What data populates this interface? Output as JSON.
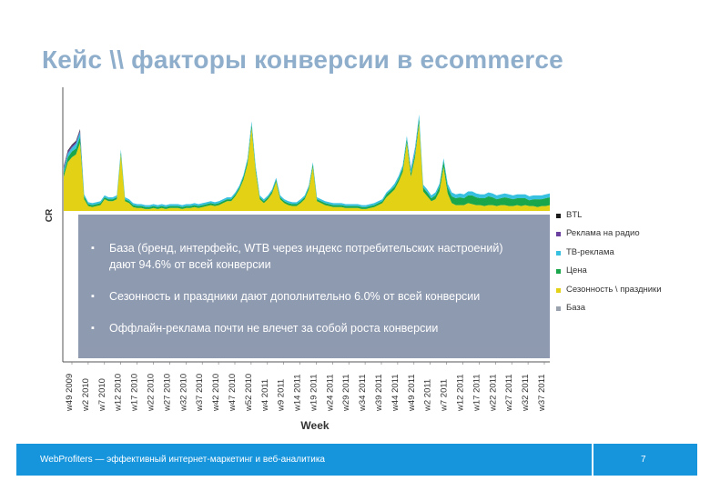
{
  "slide": {
    "title": "Кейс \\\\ факторы конверсии в ecommerce",
    "bullets": [
      "База (бренд, интерфейс, WTB через индекс потребительских настроений) дают 94.6% от всей конверсии",
      "Сезонность и праздники дают дополнительно 6.0% от всей конверсии",
      "Оффлайн-реклама почти не влечет за собой роста конверсии"
    ]
  },
  "legend": [
    {
      "name": "BTL",
      "color": "#1a1a1a"
    },
    {
      "name": "Реклама на радио",
      "color": "#6a3fa0"
    },
    {
      "name": "ТВ-реклама",
      "color": "#37c0e0"
    },
    {
      "name": "Цена",
      "color": "#1aa64a"
    },
    {
      "name": "Сезонность \\ праздники",
      "color": "#e3d115"
    },
    {
      "name": "База",
      "color": "#9aa2ad"
    }
  ],
  "footer": {
    "text": "WebProfiters — эффективный интернет-маркетинг и веб-аналитика",
    "page": "7"
  },
  "chart_data": {
    "type": "area",
    "stacked": true,
    "ylabel": "CR",
    "xlabel": "Week",
    "tick_labels": [
      "w49 2009",
      "w2 2010",
      "w7 2010",
      "w12 2010",
      "w17 2010",
      "w22 2010",
      "w27 2010",
      "w32 2010",
      "w37 2010",
      "w42 2010",
      "w47 2010",
      "w52 2010",
      "w4 2011",
      "w9 2011",
      "w14 2011",
      "w19 2011",
      "w24 2011",
      "w29 2011",
      "w34 2011",
      "w39 2011",
      "w44 2011",
      "w49 2011",
      "w2 2011",
      "w7 2011",
      "w12 2011",
      "w17 2011",
      "w22 2011",
      "w27 2011",
      "w32 2011",
      "w37 2011"
    ],
    "series": [
      {
        "name": "Сезонность \\ праздники",
        "color": "#e3d115",
        "values": [
          0.35,
          0.5,
          0.55,
          0.58,
          0.7,
          0.12,
          0.05,
          0.04,
          0.05,
          0.06,
          0.12,
          0.1,
          0.1,
          0.12,
          0.58,
          0.1,
          0.08,
          0.04,
          0.03,
          0.03,
          0.02,
          0.02,
          0.03,
          0.02,
          0.03,
          0.02,
          0.03,
          0.03,
          0.03,
          0.02,
          0.03,
          0.03,
          0.04,
          0.03,
          0.04,
          0.05,
          0.06,
          0.05,
          0.06,
          0.08,
          0.1,
          0.1,
          0.15,
          0.22,
          0.32,
          0.48,
          0.85,
          0.4,
          0.12,
          0.08,
          0.12,
          0.18,
          0.3,
          0.12,
          0.08,
          0.06,
          0.05,
          0.05,
          0.08,
          0.12,
          0.22,
          0.45,
          0.1,
          0.08,
          0.06,
          0.05,
          0.04,
          0.04,
          0.04,
          0.03,
          0.03,
          0.03,
          0.03,
          0.02,
          0.02,
          0.03,
          0.04,
          0.06,
          0.08,
          0.14,
          0.18,
          0.22,
          0.3,
          0.4,
          0.7,
          0.35,
          0.55,
          0.9,
          0.2,
          0.15,
          0.1,
          0.12,
          0.2,
          0.45,
          0.18,
          0.08,
          0.06,
          0.06,
          0.06,
          0.08,
          0.07,
          0.06,
          0.06,
          0.05,
          0.06,
          0.06,
          0.05,
          0.06,
          0.06,
          0.05,
          0.05,
          0.06,
          0.05,
          0.06,
          0.05,
          0.05,
          0.04,
          0.05,
          0.05,
          0.06
        ]
      },
      {
        "name": "Цена",
        "color": "#1aa64a",
        "values": [
          0.04,
          0.05,
          0.06,
          0.06,
          0.06,
          0.03,
          0.02,
          0.02,
          0.02,
          0.02,
          0.02,
          0.02,
          0.02,
          0.02,
          0.03,
          0.02,
          0.02,
          0.02,
          0.02,
          0.02,
          0.02,
          0.02,
          0.02,
          0.02,
          0.02,
          0.02,
          0.02,
          0.02,
          0.02,
          0.02,
          0.02,
          0.02,
          0.02,
          0.02,
          0.02,
          0.02,
          0.02,
          0.02,
          0.02,
          0.02,
          0.02,
          0.02,
          0.02,
          0.02,
          0.03,
          0.03,
          0.04,
          0.03,
          0.02,
          0.02,
          0.02,
          0.02,
          0.02,
          0.02,
          0.02,
          0.02,
          0.02,
          0.02,
          0.02,
          0.02,
          0.02,
          0.03,
          0.02,
          0.02,
          0.02,
          0.02,
          0.02,
          0.02,
          0.02,
          0.02,
          0.02,
          0.02,
          0.02,
          0.02,
          0.02,
          0.02,
          0.02,
          0.02,
          0.02,
          0.03,
          0.03,
          0.03,
          0.03,
          0.04,
          0.04,
          0.04,
          0.04,
          0.05,
          0.04,
          0.04,
          0.03,
          0.04,
          0.05,
          0.06,
          0.06,
          0.07,
          0.07,
          0.08,
          0.07,
          0.08,
          0.09,
          0.08,
          0.07,
          0.08,
          0.09,
          0.08,
          0.07,
          0.07,
          0.08,
          0.08,
          0.07,
          0.07,
          0.08,
          0.07,
          0.06,
          0.07,
          0.08,
          0.07,
          0.08,
          0.08
        ]
      },
      {
        "name": "ТВ-реклама",
        "color": "#37c0e0",
        "values": [
          0.04,
          0.04,
          0.04,
          0.05,
          0.05,
          0.02,
          0.02,
          0.02,
          0.02,
          0.02,
          0.02,
          0.02,
          0.02,
          0.02,
          0.02,
          0.02,
          0.02,
          0.02,
          0.02,
          0.02,
          0.02,
          0.02,
          0.02,
          0.02,
          0.02,
          0.02,
          0.02,
          0.02,
          0.02,
          0.02,
          0.02,
          0.02,
          0.02,
          0.02,
          0.02,
          0.02,
          0.02,
          0.02,
          0.02,
          0.02,
          0.02,
          0.02,
          0.02,
          0.02,
          0.02,
          0.03,
          0.03,
          0.03,
          0.02,
          0.02,
          0.02,
          0.02,
          0.02,
          0.02,
          0.02,
          0.02,
          0.02,
          0.02,
          0.02,
          0.02,
          0.02,
          0.02,
          0.02,
          0.02,
          0.02,
          0.02,
          0.02,
          0.02,
          0.02,
          0.02,
          0.02,
          0.02,
          0.02,
          0.02,
          0.02,
          0.02,
          0.02,
          0.02,
          0.02,
          0.02,
          0.02,
          0.03,
          0.03,
          0.03,
          0.03,
          0.04,
          0.05,
          0.04,
          0.03,
          0.03,
          0.03,
          0.03,
          0.03,
          0.03,
          0.04,
          0.04,
          0.04,
          0.04,
          0.04,
          0.04,
          0.04,
          0.04,
          0.04,
          0.04,
          0.04,
          0.04,
          0.04,
          0.04,
          0.04,
          0.04,
          0.04,
          0.04,
          0.04,
          0.04,
          0.04,
          0.04,
          0.04,
          0.04,
          0.04,
          0.04
        ]
      },
      {
        "name": "Реклама на радио",
        "color": "#6a3fa0",
        "values": [
          0.02,
          0.02,
          0.02,
          0.02,
          0.02,
          0.0,
          0.0,
          0.0,
          0.0,
          0.0,
          0.0,
          0.0,
          0.0,
          0.0,
          0.0,
          0.0,
          0.0,
          0.0,
          0.0,
          0.0,
          0.0,
          0.0,
          0.0,
          0.0,
          0.0,
          0.0,
          0.0,
          0.0,
          0.0,
          0.0,
          0.0,
          0.0,
          0.0,
          0.0,
          0.0,
          0.0,
          0.0,
          0.0,
          0.0,
          0.0,
          0.0,
          0.0,
          0.0,
          0.0,
          0.0,
          0.0,
          0.0,
          0.0,
          0.0,
          0.0,
          0.0,
          0.0,
          0.0,
          0.0,
          0.0,
          0.0,
          0.0,
          0.0,
          0.0,
          0.0,
          0.0,
          0.0,
          0.0,
          0.0,
          0.0,
          0.0,
          0.0,
          0.0,
          0.0,
          0.0,
          0.0,
          0.0,
          0.0,
          0.0,
          0.0,
          0.0,
          0.0,
          0.0,
          0.0,
          0.0,
          0.0,
          0.0,
          0.0,
          0.0,
          0.0,
          0.01,
          0.01,
          0.0,
          0.0,
          0.0,
          0.0,
          0.0,
          0.0,
          0.0,
          0.0,
          0.0,
          0.0,
          0.0,
          0.0,
          0.0,
          0.0,
          0.0,
          0.0,
          0.0,
          0.0,
          0.0,
          0.0,
          0.0,
          0.0,
          0.0,
          0.0,
          0.0,
          0.0,
          0.0,
          0.0,
          0.0,
          0.0,
          0.0,
          0.0,
          0.0
        ]
      },
      {
        "name": "BTL",
        "color": "#1a1a1a",
        "values": [
          0.01,
          0.01,
          0.01,
          0.01,
          0.01,
          0.0,
          0.0,
          0.0,
          0.0,
          0.0,
          0.0,
          0.0,
          0.0,
          0.0,
          0.0,
          0.0,
          0.0,
          0.0,
          0.0,
          0.0,
          0.0,
          0.0,
          0.0,
          0.0,
          0.0,
          0.0,
          0.0,
          0.0,
          0.0,
          0.0,
          0.0,
          0.0,
          0.0,
          0.0,
          0.0,
          0.0,
          0.0,
          0.0,
          0.0,
          0.0,
          0.0,
          0.0,
          0.0,
          0.0,
          0.0,
          0.0,
          0.0,
          0.0,
          0.0,
          0.0,
          0.0,
          0.0,
          0.0,
          0.0,
          0.0,
          0.0,
          0.0,
          0.0,
          0.0,
          0.0,
          0.0,
          0.0,
          0.0,
          0.0,
          0.0,
          0.0,
          0.0,
          0.0,
          0.0,
          0.0,
          0.0,
          0.0,
          0.0,
          0.0,
          0.0,
          0.0,
          0.0,
          0.0,
          0.0,
          0.0,
          0.0,
          0.0,
          0.0,
          0.0,
          0.0,
          0.0,
          0.0,
          0.0,
          0.0,
          0.0,
          0.0,
          0.0,
          0.0,
          0.0,
          0.0,
          0.0,
          0.0,
          0.0,
          0.0,
          0.0,
          0.0,
          0.0,
          0.0,
          0.0,
          0.0,
          0.0,
          0.0,
          0.0,
          0.0,
          0.0,
          0.0,
          0.0,
          0.0,
          0.0,
          0.0,
          0.0,
          0.0,
          0.0,
          0.0,
          0.0
        ]
      }
    ],
    "ylim": [
      0,
      1.25
    ],
    "grid": false,
    "legend_position": "right"
  }
}
